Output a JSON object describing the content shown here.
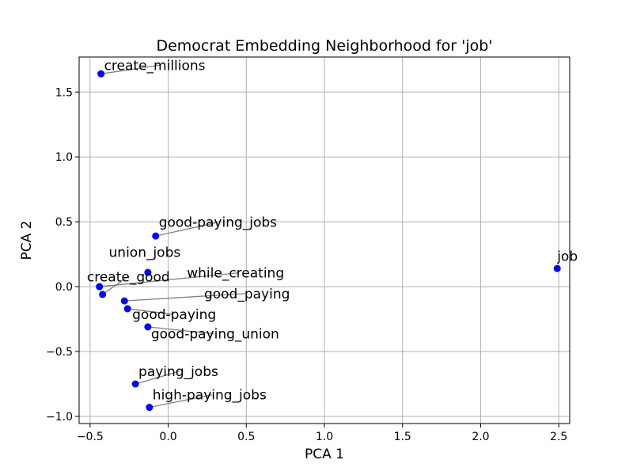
{
  "chart_data": {
    "type": "scatter",
    "title": "Democrat Embedding Neighborhood for 'job'",
    "xlabel": "PCA 1",
    "ylabel": "PCA 2",
    "xlim": [
      -0.57,
      2.57
    ],
    "ylim": [
      -1.055,
      1.77
    ],
    "xticks": [
      -0.5,
      0.0,
      0.5,
      1.0,
      1.5,
      2.0,
      2.5
    ],
    "xtick_labels": [
      "−0.5",
      "0.0",
      "0.5",
      "1.0",
      "1.5",
      "2.0",
      "2.5"
    ],
    "yticks": [
      -1.0,
      -0.5,
      0.0,
      0.5,
      1.0,
      1.5
    ],
    "ytick_labels": [
      "−1.0",
      "−0.5",
      "0.0",
      "0.5",
      "1.0",
      "1.5"
    ],
    "grid": true,
    "point_color": "#0000ff",
    "leader_color": "#808080",
    "points": [
      {
        "label": "create_millions",
        "x": -0.43,
        "y": 1.64,
        "lx": -0.41,
        "ly": 1.67
      },
      {
        "label": "good-paying_jobs",
        "x": -0.08,
        "y": 0.39,
        "lx": -0.06,
        "ly": 0.46
      },
      {
        "label": "union_jobs",
        "x": -0.13,
        "y": 0.11,
        "lx": -0.38,
        "ly": 0.23
      },
      {
        "label": "job",
        "x": 2.49,
        "y": 0.14,
        "lx": 2.49,
        "ly": 0.2
      },
      {
        "label": "while_creating",
        "x": -0.44,
        "y": 0.0,
        "lx": 0.12,
        "ly": 0.07
      },
      {
        "label": "create_good",
        "x": -0.42,
        "y": -0.06,
        "lx": -0.52,
        "ly": 0.04
      },
      {
        "label": "good_paying",
        "x": -0.28,
        "y": -0.11,
        "lx": 0.23,
        "ly": -0.09
      },
      {
        "label": "good-paying",
        "x": -0.26,
        "y": -0.17,
        "lx": -0.23,
        "ly": -0.25
      },
      {
        "label": "good-paying_union",
        "x": -0.13,
        "y": -0.31,
        "lx": -0.11,
        "ly": -0.4
      },
      {
        "label": "paying_jobs",
        "x": -0.21,
        "y": -0.75,
        "lx": -0.19,
        "ly": -0.69
      },
      {
        "label": "high-paying_jobs",
        "x": -0.12,
        "y": -0.93,
        "lx": -0.1,
        "ly": -0.87
      }
    ]
  }
}
